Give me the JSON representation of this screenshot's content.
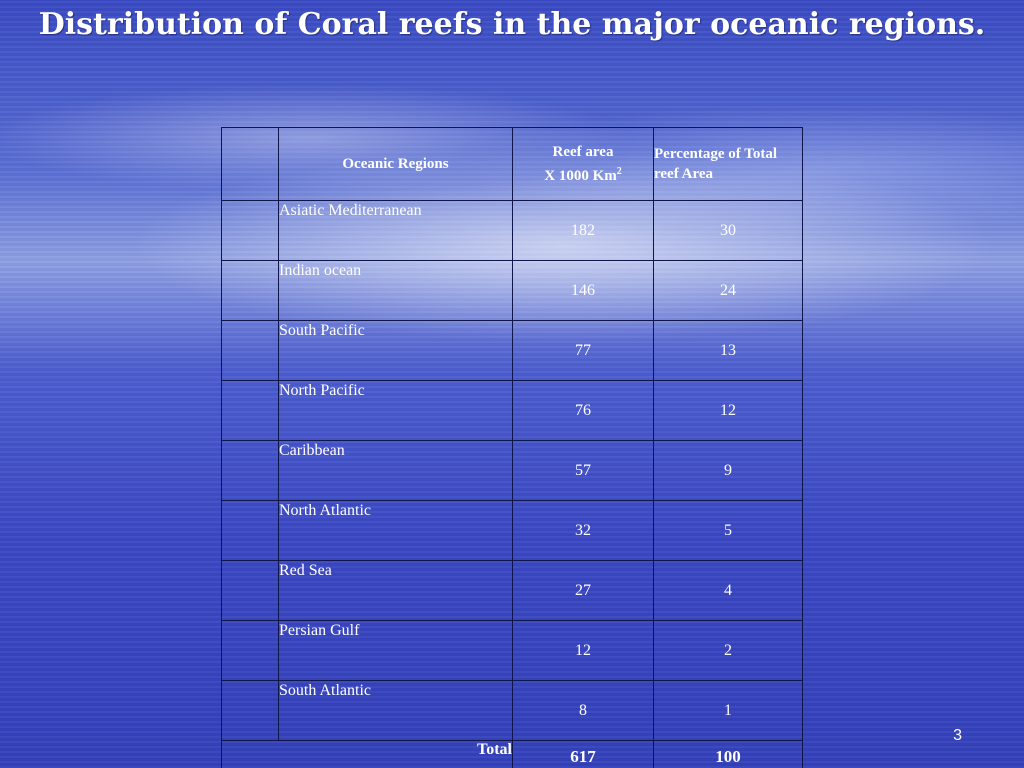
{
  "slide": {
    "title": "Distribution of Coral reefs in the major oceanic regions.",
    "page_number": "3"
  },
  "table": {
    "headers": {
      "region": "Oceanic Regions",
      "area_line1": "Reef area",
      "area_line2": "X 1000 Km",
      "area_sup": "2",
      "percent": "Percentage of Total reef Area"
    },
    "rows": [
      {
        "region": "Asiatic Mediterranean",
        "area": "182",
        "percent": "30"
      },
      {
        "region": "Indian ocean",
        "area": "146",
        "percent": "24"
      },
      {
        "region": "South Pacific",
        "area": "77",
        "percent": "13"
      },
      {
        "region": "North Pacific",
        "area": "76",
        "percent": "12"
      },
      {
        "region": "Caribbean",
        "area": "57",
        "percent": "9"
      },
      {
        "region": "North Atlantic",
        "area": "32",
        "percent": "5"
      },
      {
        "region": "Red Sea",
        "area": "27",
        "percent": "4"
      },
      {
        "region": "Persian Gulf",
        "area": "12",
        "percent": "2"
      },
      {
        "region": "South Atlantic",
        "area": "8",
        "percent": "1"
      }
    ],
    "total": {
      "label": "Total",
      "area": "617",
      "percent": "100"
    }
  },
  "chart_data": {
    "type": "table",
    "title": "Distribution of Coral reefs in the major oceanic regions.",
    "columns": [
      "Oceanic Regions",
      "Reef area X 1000 Km2",
      "Percentage of Total reef Area"
    ],
    "categories": [
      "Asiatic Mediterranean",
      "Indian ocean",
      "South Pacific",
      "North Pacific",
      "Caribbean",
      "North Atlantic",
      "Red Sea",
      "Persian Gulf",
      "South Atlantic"
    ],
    "series": [
      {
        "name": "Reef area X 1000 Km2",
        "values": [
          182,
          146,
          77,
          76,
          57,
          32,
          27,
          12,
          8
        ]
      },
      {
        "name": "Percentage of Total reef Area",
        "values": [
          30,
          24,
          13,
          12,
          9,
          5,
          4,
          2,
          1
        ]
      }
    ],
    "totals": {
      "Reef area X 1000 Km2": 617,
      "Percentage of Total reef Area": 100
    }
  }
}
